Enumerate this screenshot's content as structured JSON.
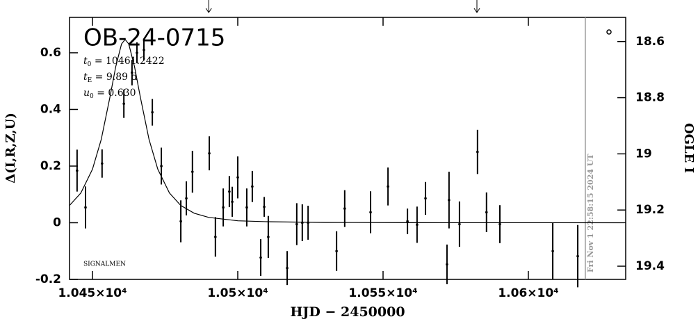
{
  "chart_data": {
    "type": "scatter",
    "title": "OB-24-0715",
    "x_label": "HJD − 2450000",
    "y_label": "Δ(I,R,Z,U)",
    "y2_label": "OGLE I",
    "parameters": [
      {
        "symbol": "t",
        "sub": "0",
        "text": " = 10461.2422"
      },
      {
        "symbol": "t",
        "sub": "E",
        "text": " = 9.89 d"
      },
      {
        "symbol": "u",
        "sub": "0",
        "text": " = 0.630"
      }
    ],
    "credit": "SIGNALMEN",
    "timestamp": "Fri Nov  1 22:58:15 2024 UT",
    "timestamp_x": 10619.6,
    "arrows_x": [
      10490,
      10582.3
    ],
    "xlim": [
      10442.1,
      10633.5
    ],
    "ylim": [
      -0.2,
      0.725
    ],
    "y2lim": [
      19.447,
      18.514
    ],
    "xticks": [
      {
        "value": 10450,
        "label": "1.045×10⁴"
      },
      {
        "value": 10500,
        "label": "1.05×10⁴"
      },
      {
        "value": 10550,
        "label": "1.055×10⁴"
      },
      {
        "value": 10600,
        "label": "1.06×10⁴"
      }
    ],
    "yticks": [
      -0.2,
      0,
      0.2,
      0.4,
      0.6
    ],
    "y2ticks": [
      18.6,
      18.8,
      19,
      19.2,
      19.4
    ],
    "color": "#000000",
    "points": {
      "x": [
        10444.7,
        10447.6,
        10453.3,
        10460.8,
        10463.6,
        10465.3,
        10467.7,
        10470.6,
        10473.7,
        10480.4,
        10482.3,
        10484.4,
        10490.2,
        10492.3,
        10495.0,
        10497.1,
        10498.1,
        10500.0,
        10503.1,
        10505.0,
        10507.9,
        10509.1,
        10510.5,
        10517.0,
        10520.3,
        10522.2,
        10524.2,
        10534.0,
        10536.8,
        10545.7,
        10551.7,
        10558.4,
        10561.7,
        10564.6,
        10572.0,
        10572.7,
        10576.3,
        10582.5,
        10585.6,
        10590.2,
        10608.4,
        10617.0
      ],
      "values": [
        0.184,
        0.054,
        0.209,
        0.42,
        0.53,
        0.6,
        0.61,
        0.39,
        0.2,
        0.005,
        0.086,
        0.18,
        0.245,
        -0.05,
        0.054,
        0.11,
        0.074,
        0.16,
        0.054,
        0.128,
        -0.123,
        0.056,
        -0.05,
        -0.16,
        -0.005,
        0,
        0,
        -0.1,
        0.05,
        0.037,
        0.128,
        0.005,
        -0.007,
        0.086,
        -0.147,
        0.08,
        -0.005,
        0.25,
        0.037,
        -0.005,
        -0.1,
        -0.118
      ],
      "errors": [
        0.074,
        0.074,
        0.05,
        0.05,
        0.045,
        0.037,
        0.037,
        0.047,
        0.065,
        0.074,
        0.06,
        0.074,
        0.06,
        0.07,
        0.067,
        0.055,
        0.053,
        0.074,
        0.067,
        0.055,
        0.065,
        0.035,
        0.074,
        0.06,
        0.074,
        0.065,
        0.06,
        0.07,
        0.065,
        0.074,
        0.067,
        0.045,
        0.064,
        0.058,
        0.07,
        0.1,
        0.08,
        0.078,
        0.07,
        0.067,
        0.1,
        0.11
      ]
    },
    "model": {
      "x": [
        10442.1,
        10446,
        10450,
        10453,
        10456,
        10458,
        10460,
        10461.24,
        10462.48,
        10464.48,
        10466.48,
        10469.48,
        10472.48,
        10476.48,
        10480.38,
        10485,
        10490,
        10500,
        10510,
        10530,
        10560,
        10633.5
      ],
      "values": [
        0.061,
        0.105,
        0.189,
        0.294,
        0.443,
        0.551,
        0.631,
        0.647,
        0.631,
        0.551,
        0.443,
        0.294,
        0.189,
        0.105,
        0.061,
        0.0336,
        0.0188,
        0.0069,
        0.0036,
        0.0009,
        0.0002,
        0
      ]
    }
  }
}
